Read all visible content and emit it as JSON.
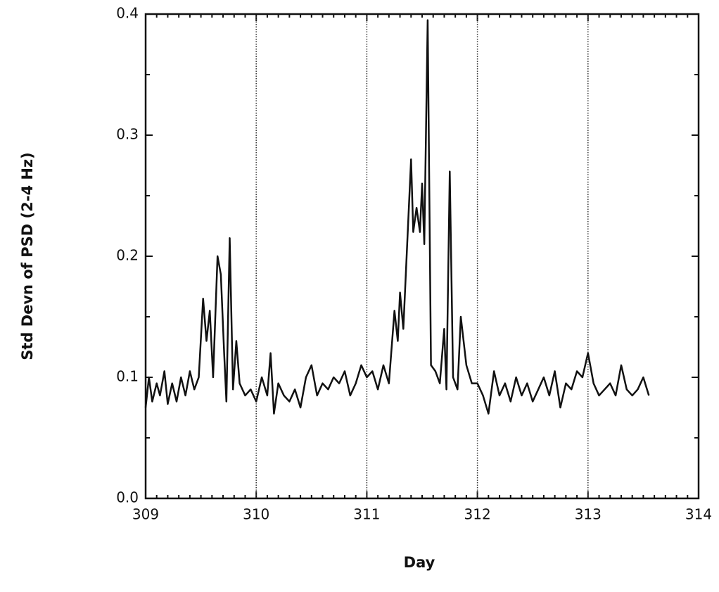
{
  "chart_data": {
    "type": "line",
    "xlabel": "Day",
    "ylabel": "Std Devn of PSD (2-4 Hz)",
    "xlim": [
      309,
      314
    ],
    "xticks": [
      309,
      310,
      311,
      312,
      313,
      314
    ],
    "ylim": [
      0,
      0.4
    ],
    "yticks": [
      {
        "value": 0,
        "label": "0.0"
      },
      0.1,
      0.2,
      0.3,
      0.4
    ],
    "xgrid": true,
    "color": "#111111",
    "x": [
      309.0,
      309.03,
      309.06,
      309.1,
      309.13,
      309.17,
      309.2,
      309.24,
      309.28,
      309.32,
      309.36,
      309.4,
      309.44,
      309.48,
      309.52,
      309.55,
      309.58,
      309.61,
      309.65,
      309.68,
      309.71,
      309.73,
      309.76,
      309.79,
      309.82,
      309.85,
      309.9,
      309.95,
      310.0,
      310.05,
      310.1,
      310.13,
      310.16,
      310.2,
      310.25,
      310.3,
      310.35,
      310.4,
      310.45,
      310.5,
      310.55,
      310.6,
      310.65,
      310.7,
      310.75,
      310.8,
      310.85,
      310.9,
      310.95,
      311.0,
      311.05,
      311.1,
      311.15,
      311.2,
      311.25,
      311.28,
      311.3,
      311.33,
      311.36,
      311.4,
      311.42,
      311.45,
      311.48,
      311.5,
      311.52,
      311.55,
      311.58,
      311.62,
      311.66,
      311.7,
      311.72,
      311.75,
      311.78,
      311.82,
      311.85,
      311.9,
      311.95,
      312.0,
      312.05,
      312.1,
      312.15,
      312.2,
      312.25,
      312.3,
      312.35,
      312.4,
      312.45,
      312.5,
      312.55,
      312.6,
      312.65,
      312.7,
      312.75,
      312.8,
      312.85,
      312.9,
      312.95,
      313.0,
      313.05,
      313.1,
      313.15,
      313.2,
      313.25,
      313.3,
      313.35,
      313.4,
      313.45,
      313.5,
      313.55
    ],
    "values": [
      0.075,
      0.1,
      0.08,
      0.095,
      0.085,
      0.105,
      0.078,
      0.095,
      0.08,
      0.1,
      0.085,
      0.105,
      0.09,
      0.1,
      0.165,
      0.13,
      0.155,
      0.1,
      0.2,
      0.185,
      0.12,
      0.08,
      0.215,
      0.09,
      0.13,
      0.095,
      0.085,
      0.09,
      0.08,
      0.1,
      0.085,
      0.12,
      0.07,
      0.095,
      0.085,
      0.08,
      0.09,
      0.075,
      0.1,
      0.11,
      0.085,
      0.095,
      0.09,
      0.1,
      0.095,
      0.105,
      0.085,
      0.095,
      0.11,
      0.1,
      0.105,
      0.09,
      0.11,
      0.095,
      0.155,
      0.13,
      0.17,
      0.14,
      0.2,
      0.28,
      0.22,
      0.24,
      0.22,
      0.26,
      0.21,
      0.395,
      0.11,
      0.105,
      0.095,
      0.14,
      0.09,
      0.27,
      0.1,
      0.09,
      0.15,
      0.11,
      0.095,
      0.095,
      0.085,
      0.07,
      0.105,
      0.085,
      0.095,
      0.08,
      0.1,
      0.085,
      0.095,
      0.08,
      0.09,
      0.1,
      0.085,
      0.105,
      0.075,
      0.095,
      0.09,
      0.105,
      0.1,
      0.12,
      0.095,
      0.085,
      0.09,
      0.095,
      0.085,
      0.11,
      0.09,
      0.085,
      0.09,
      0.1,
      0.085
    ]
  }
}
